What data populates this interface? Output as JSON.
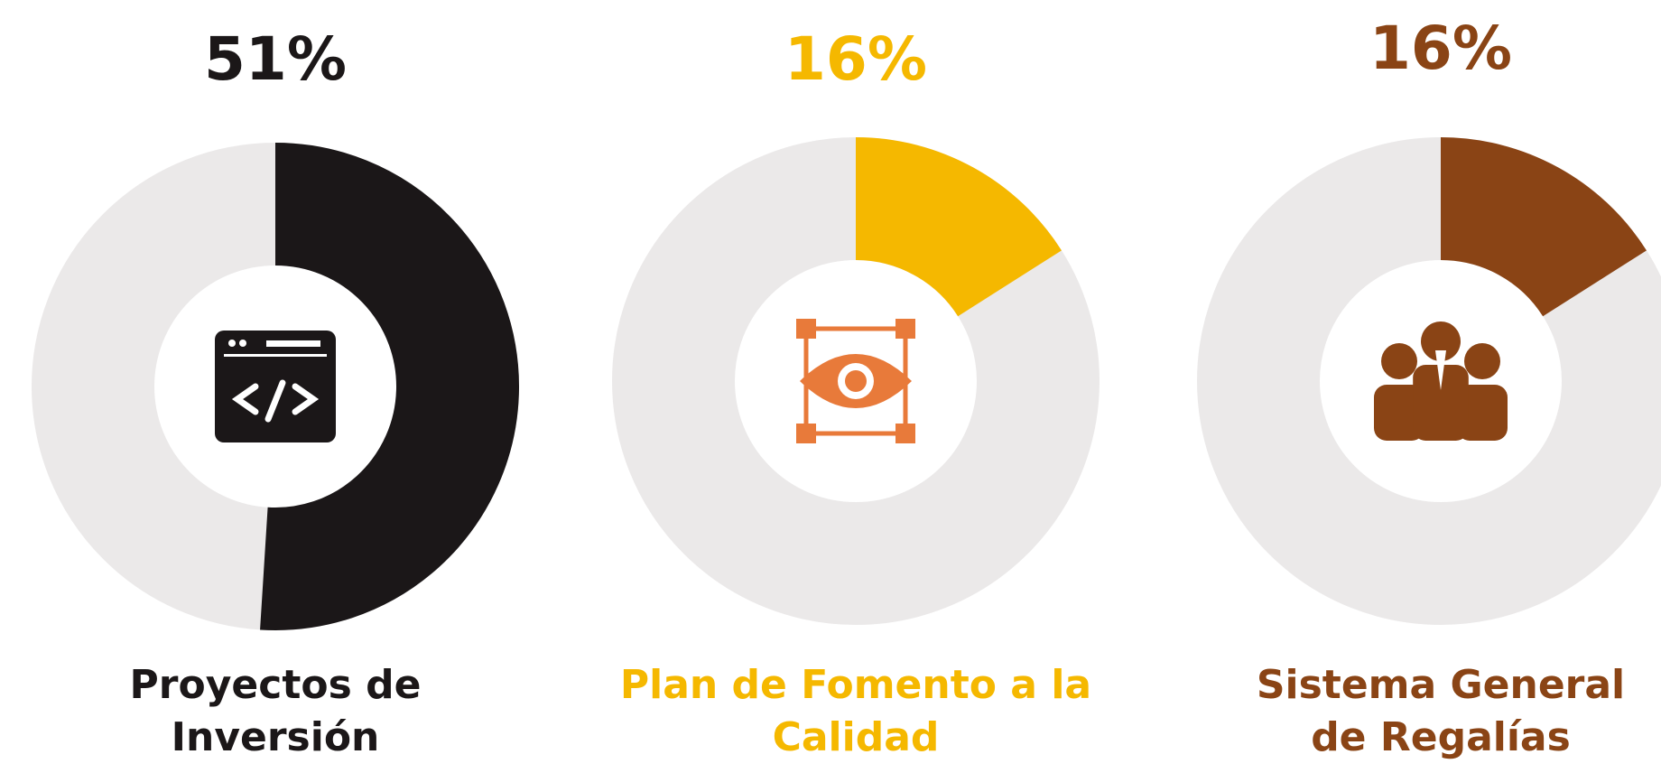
{
  "chart_data": [
    {
      "type": "donut",
      "title": "Proyectos de Inversión",
      "values": [
        51
      ],
      "value_labels": [
        "51%"
      ],
      "color": "#1b1718"
    },
    {
      "type": "donut",
      "title": "Plan de Fomento a la Calidad",
      "values": [
        16
      ],
      "value_labels": [
        "16%"
      ],
      "color": "#f5b800"
    },
    {
      "type": "donut",
      "title": "Sistema General de Regalías",
      "values": [
        16
      ],
      "value_labels": [
        "16%"
      ],
      "color": "#8a4415"
    }
  ]
}
